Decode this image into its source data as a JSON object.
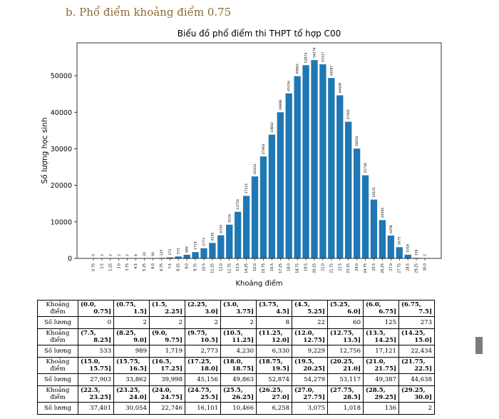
{
  "heading": "b. Phổ điểm khoảng điểm 0.75",
  "colors": {
    "bar": "#1f77b4",
    "heading": "#8d6a2f"
  },
  "chart_data": {
    "type": "bar",
    "title": "Biểu đồ phổ điểm thi THPT tổ hợp C00",
    "xlabel": "Khoảng điểm",
    "ylabel": "Số lượng học sinh",
    "ylim": [
      0,
      59000
    ],
    "yticks": [
      0,
      10000,
      20000,
      30000,
      40000,
      50000
    ],
    "categories": [
      "0.75",
      "1.5",
      "2.25",
      "3.0",
      "3.75",
      "4.5",
      "5.25",
      "6.0",
      "6.75",
      "7.5",
      "8.25",
      "9.0",
      "9.75",
      "10.5",
      "11.25",
      "12.0",
      "12.75",
      "13.5",
      "14.25",
      "15.0",
      "15.75",
      "16.5",
      "17.25",
      "18.0",
      "18.75",
      "19.5",
      "20.25",
      "21.0",
      "21.75",
      "22.5",
      "23.25",
      "24.0",
      "24.75",
      "25.5",
      "26.25",
      "27.0",
      "27.75",
      "28.5",
      "29.25",
      "30.0"
    ],
    "values": [
      0,
      2,
      2,
      2,
      2,
      8,
      22,
      60,
      125,
      273,
      533,
      989,
      1719,
      2773,
      4230,
      6330,
      9229,
      12756,
      17121,
      22434,
      27903,
      33862,
      39998,
      45156,
      49863,
      52874,
      54279,
      53117,
      49387,
      44638,
      37401,
      30054,
      22746,
      16101,
      10466,
      6258,
      3075,
      1018,
      136,
      2
    ]
  },
  "table": {
    "rows": [
      {
        "label_top": "Khoảng",
        "label_bottom": "điểm",
        "count_label": "Số lương",
        "intervals": [
          [
            "(0.0,",
            "0.75]"
          ],
          [
            "(0.75,",
            "1.5]"
          ],
          [
            "(1.5,",
            "2.25]"
          ],
          [
            "(2.25,",
            "3.0]"
          ],
          [
            "(3.0,",
            "3.75]"
          ],
          [
            "(3.75,",
            "4.5]"
          ],
          [
            "(4.5,",
            "5.25]"
          ],
          [
            "(5.25,",
            "6.0]"
          ],
          [
            "(6.0,",
            "6.75]"
          ],
          [
            "(6.75,",
            "7.5]"
          ]
        ],
        "counts": [
          "0",
          "2",
          "2",
          "2",
          "2",
          "8",
          "22",
          "60",
          "125",
          "273"
        ]
      },
      {
        "label_top": "Khoảng",
        "label_bottom": "điểm",
        "count_label": "Số lương",
        "intervals": [
          [
            "(7.5,",
            "8.25]"
          ],
          [
            "(8.25,",
            "9.0]"
          ],
          [
            "(9.0,",
            "9.75]"
          ],
          [
            "(9.75,",
            "10.5]"
          ],
          [
            "(10.5,",
            "11.25]"
          ],
          [
            "(11.25,",
            "12.0]"
          ],
          [
            "(12.0,",
            "12.75]"
          ],
          [
            "(12.75,",
            "13.5]"
          ],
          [
            "(13.5,",
            "14.25]"
          ],
          [
            "(14.25,",
            "15.0]"
          ]
        ],
        "counts": [
          "533",
          "989",
          "1,719",
          "2,773",
          "4,230",
          "6,330",
          "9,229",
          "12,756",
          "17,121",
          "22,434"
        ]
      },
      {
        "label_top": "Khoảng",
        "label_bottom": "điểm",
        "count_label": "Số lương",
        "intervals": [
          [
            "(15.0,",
            "15.75]"
          ],
          [
            "(15.75,",
            "16.5]"
          ],
          [
            "(16.5,",
            "17.25]"
          ],
          [
            "(17.25,",
            "18.0]"
          ],
          [
            "(18.0,",
            "18.75]"
          ],
          [
            "(18.75,",
            "19.5]"
          ],
          [
            "(19.5,",
            "20.25]"
          ],
          [
            "(20.25,",
            "21.0]"
          ],
          [
            "(21.0,",
            "21.75]"
          ],
          [
            "(21.75,",
            "22.5]"
          ]
        ],
        "counts": [
          "27,903",
          "33,862",
          "39,998",
          "45,156",
          "49,863",
          "52,874",
          "54,279",
          "53,117",
          "49,387",
          "44,638"
        ]
      },
      {
        "label_top": "Khoảng",
        "label_bottom": "điểm",
        "count_label": "Số lương",
        "intervals": [
          [
            "(22.5,",
            "23.25]"
          ],
          [
            "(23.25,",
            "24.0]"
          ],
          [
            "(24.0,",
            "24.75]"
          ],
          [
            "(24.75,",
            "25.5]"
          ],
          [
            "(25.5,",
            "26.25]"
          ],
          [
            "(26.25,",
            "27.0]"
          ],
          [
            "(27.0,",
            "27.75]"
          ],
          [
            "(27.75,",
            "28.5]"
          ],
          [
            "(28.5,",
            "29.25]"
          ],
          [
            "(29.25,",
            "30.0]"
          ]
        ],
        "counts": [
          "37,401",
          "30,054",
          "22,746",
          "16,101",
          "10,466",
          "6,258",
          "3,075",
          "1,018",
          "136",
          "2"
        ]
      }
    ]
  }
}
